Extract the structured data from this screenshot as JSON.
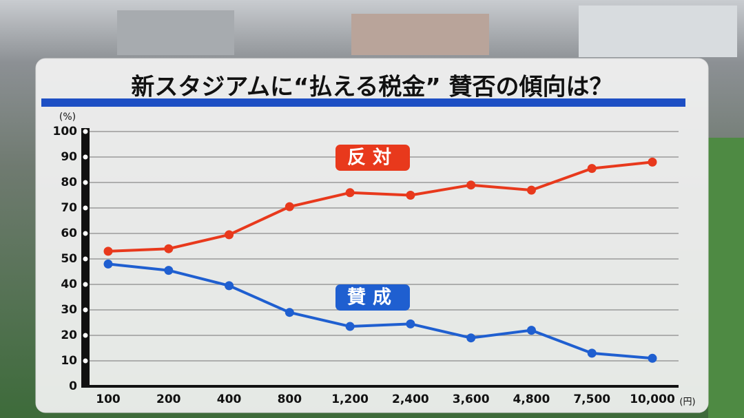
{
  "chart_data": {
    "type": "line",
    "title": "新スタジアムに“払える税金” 賛否の傾向は？",
    "y_unit": "(%)",
    "x_unit": "(円)",
    "categories": [
      "100",
      "200",
      "400",
      "800",
      "1,200",
      "2,400",
      "3,600",
      "4,800",
      "7,500",
      "10,000"
    ],
    "series": [
      {
        "name": "反対",
        "color": "#e8391c",
        "values": [
          53,
          54,
          59.5,
          70.5,
          76,
          75,
          79,
          77,
          85.5,
          88
        ]
      },
      {
        "name": "賛成",
        "color": "#1f5fd0",
        "values": [
          48,
          45.5,
          39.5,
          29,
          23.5,
          24.5,
          19,
          22,
          13,
          11
        ]
      }
    ],
    "ylim": [
      0,
      100
    ],
    "yticks": [
      0,
      10,
      20,
      30,
      40,
      50,
      60,
      70,
      80,
      90,
      100
    ],
    "grid": true
  }
}
